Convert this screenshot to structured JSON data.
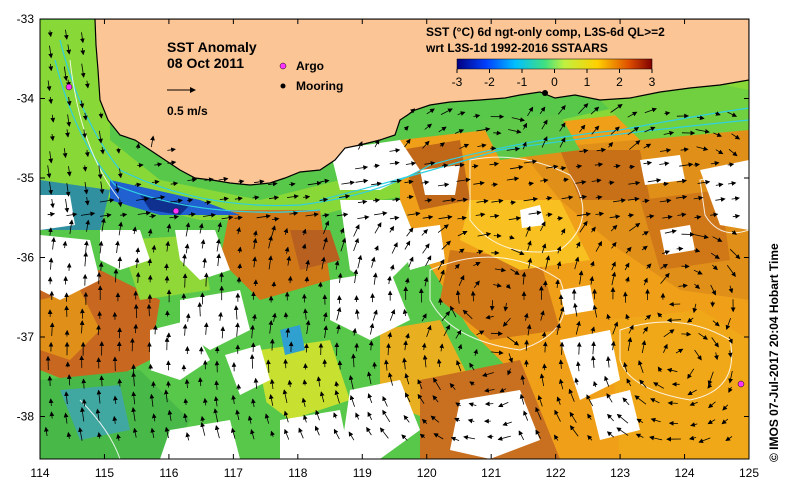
{
  "map": {
    "title_line1": "SST Anomaly",
    "title_line2": "08 Oct 2011",
    "scale_label": "0.5 m/s",
    "legend": {
      "argo_label": "Argo",
      "mooring_label": "Mooring",
      "argo_color": "#ff33ff",
      "mooring_color": "#000000"
    },
    "colorbar": {
      "title_line1": "SST (°C) 6d ngt-only comp, L3S-6d QL>=2",
      "title_line2": "wrt L3S-1d 1992-2016 SSTAARS",
      "ticks": [
        "-3",
        "-2",
        "-1",
        "0",
        "1",
        "2",
        "3"
      ],
      "colors": [
        "#000080",
        "#0040ff",
        "#00c0ff",
        "#40e080",
        "#c0f040",
        "#ffd000",
        "#e05000",
        "#800000"
      ]
    },
    "axes": {
      "x_ticks": [
        "114",
        "115",
        "116",
        "117",
        "118",
        "119",
        "120",
        "121",
        "122",
        "123",
        "124",
        "125"
      ],
      "y_ticks": [
        "-33",
        "-34",
        "-35",
        "-36",
        "-37",
        "-38"
      ]
    },
    "credit": "© IMOS 07-Jul-2017 20:04 Hobart Time",
    "colors": {
      "land": "#fbc595",
      "ocean_green": "#58c84a",
      "ocean_yellow": "#c8e030",
      "ocean_orange": "#f0a018",
      "ocean_brown": "#c06818",
      "ocean_blue": "#2060d0",
      "no_data": "#ffffff"
    }
  }
}
